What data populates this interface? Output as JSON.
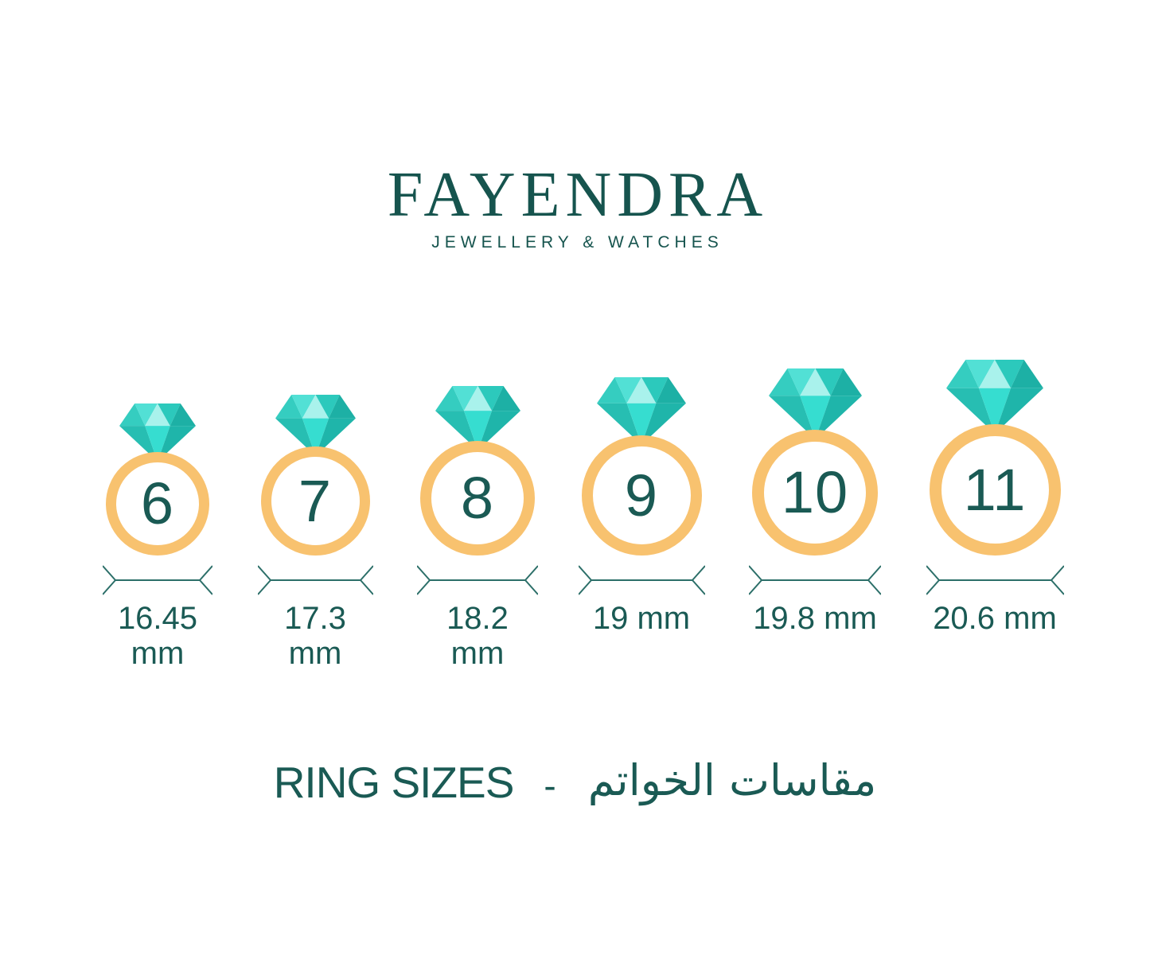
{
  "brand": {
    "name": "FAYENDRA",
    "tagline": "JEWELLERY & WATCHES"
  },
  "rings": [
    {
      "size": "6",
      "diameter_label": "16.45 mm"
    },
    {
      "size": "7",
      "diameter_label": "17.3 mm"
    },
    {
      "size": "8",
      "diameter_label": "18.2 mm"
    },
    {
      "size": "9",
      "diameter_label": "19 mm"
    },
    {
      "size": "10",
      "diameter_label": "19.8 mm"
    },
    {
      "size": "11",
      "diameter_label": "20.6 mm"
    }
  ],
  "footer_title": {
    "en": "RING SIZES",
    "separator": "-",
    "ar": "مقاسات الخواتم"
  },
  "colors": {
    "brand_text": "#16544e",
    "text": "#1a5a54",
    "band": "#f8c26f",
    "measure_line": "#2c6f69",
    "diamond": {
      "corner_left": "#35cdc0",
      "crown_light": "#52e0d5",
      "crown_lighter": "#a9f2ec",
      "crown_right": "#2cc9bc",
      "corner_right": "#1db0a5",
      "pavilion_left": "#27beb2",
      "pavilion_center": "#36ddd0",
      "pavilion_right": "#1fb5aa"
    }
  }
}
